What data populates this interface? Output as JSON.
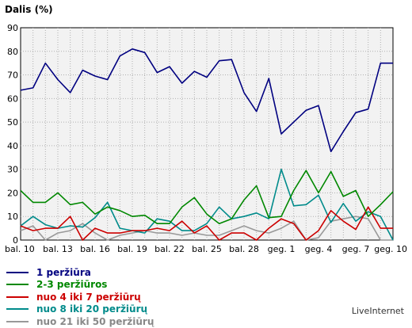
{
  "chart_data": {
    "type": "line",
    "ylabel": "Dalis (%)",
    "ylim": [
      0,
      90
    ],
    "yticks": [
      0,
      10,
      20,
      30,
      40,
      50,
      60,
      70,
      80,
      90
    ],
    "x_tick_labels": [
      "bal. 10",
      "bal. 13",
      "bal. 16",
      "bal. 19",
      "bal. 22",
      "bal. 25",
      "bal. 28",
      "geg. 1",
      "geg. 4",
      "geg. 7",
      "geg. 10"
    ],
    "grid": true,
    "legend_position": "bottom-left",
    "series": [
      {
        "name": "1 peržiūra",
        "color": "#000080",
        "values": [
          63.5,
          64.5,
          75,
          68,
          62.5,
          72,
          69.5,
          68,
          78,
          81,
          79.5,
          71,
          73.5,
          66.5,
          71.5,
          69,
          76,
          76.5,
          62.5,
          54.5,
          68.5,
          45,
          50,
          55,
          57,
          37.5,
          46,
          54,
          55.5,
          75,
          75
        ]
      },
      {
        "name": "2-3 peržiūros",
        "color": "#008800",
        "values": [
          21,
          16,
          16,
          20,
          15,
          16,
          11,
          14,
          12.5,
          10,
          10.5,
          7,
          7,
          14,
          18,
          11,
          7,
          9,
          17,
          23,
          9.5,
          10,
          21,
          29.5,
          20,
          29,
          18.5,
          21,
          10,
          15,
          20.5
        ]
      },
      {
        "name": "nuo 4 iki 7 peržiūrų",
        "color": "#cc0000",
        "values": [
          6,
          4,
          5,
          5,
          10,
          0,
          5,
          3,
          3,
          4,
          4,
          5,
          4,
          8,
          3,
          6,
          0,
          3,
          3,
          0,
          5,
          9,
          7,
          0,
          4,
          12.5,
          8,
          4.5,
          14,
          5,
          5
        ]
      },
      {
        "name": "nuo 8 iki 20 peržiūrų",
        "color": "#008b8b",
        "values": [
          6,
          10,
          6.5,
          5,
          6,
          5.5,
          9.5,
          16,
          5,
          4,
          3,
          9,
          8,
          4,
          4,
          7,
          14,
          9,
          10,
          11.5,
          9,
          30,
          14.5,
          15,
          19,
          7.5,
          15.5,
          8,
          12,
          10,
          0
        ]
      },
      {
        "name": "nuo 21 iki 50 peržiūrų",
        "color": "#999999",
        "values": [
          4,
          6,
          0,
          3,
          4,
          7,
          3,
          0,
          2,
          3,
          4,
          3,
          3,
          2,
          3,
          2,
          2,
          4,
          6,
          4,
          3,
          5,
          8,
          0,
          1,
          8,
          9,
          10,
          9,
          0,
          0
        ]
      }
    ]
  },
  "brand": "LiveInternet"
}
